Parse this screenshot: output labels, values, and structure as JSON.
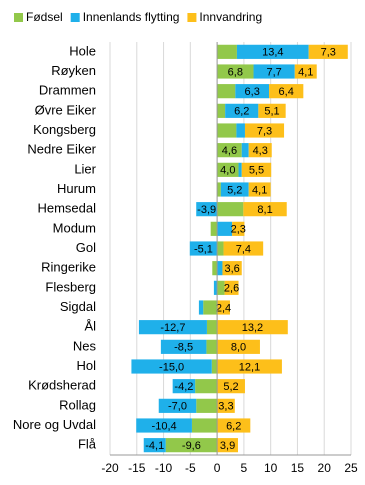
{
  "chart_data": {
    "type": "bar",
    "orientation": "horizontal",
    "stacked": true,
    "categories": [
      "Hole",
      "Røyken",
      "Drammen",
      "Øvre Eiker",
      "Kongsberg",
      "Nedre Eiker",
      "Lier",
      "Hurum",
      "Hemsedal",
      "Modum",
      "Gol",
      "Ringerike",
      "Flesberg",
      "Sigdal",
      "Ål",
      "Nes",
      "Hol",
      "Krødsherad",
      "Rollag",
      "Nore og Uvdal",
      "Flå"
    ],
    "series": [
      {
        "name": "Fødsel",
        "color": "#92c84a",
        "values": [
          3.7,
          6.8,
          3.4,
          1.5,
          3.6,
          4.6,
          4.0,
          0.7,
          4.9,
          -1.2,
          1.2,
          -0.9,
          1.4,
          -2.6,
          -1.9,
          -2.0,
          -1.0,
          -4.1,
          -3.9,
          -4.7,
          -9.6
        ],
        "value_labels": [
          null,
          "6,8",
          null,
          null,
          null,
          "4,6",
          "4,0",
          null,
          null,
          null,
          null,
          null,
          null,
          null,
          null,
          null,
          null,
          null,
          null,
          null,
          "-9,6"
        ]
      },
      {
        "name": "Innenlands flytting",
        "color": "#1fb0ea",
        "values": [
          13.4,
          7.7,
          6.3,
          6.2,
          1.6,
          1.3,
          0.6,
          5.2,
          -3.9,
          2.8,
          -5.1,
          1.0,
          -0.6,
          -0.8,
          -12.7,
          -8.5,
          -15.0,
          -4.2,
          -7.0,
          -10.4,
          -4.1
        ],
        "value_labels": [
          "13,4",
          "7,7",
          "6,3",
          "6,2",
          null,
          null,
          null,
          "5,2",
          "-3,9",
          null,
          "-5,1",
          null,
          null,
          null,
          "-12,7",
          "-8,5",
          "-15,0",
          "-4,2",
          "-7,0",
          "-10,4",
          "-4,1"
        ]
      },
      {
        "name": "Innvandring",
        "color": "#fdbf1a",
        "values": [
          7.3,
          4.1,
          6.4,
          5.1,
          7.3,
          4.3,
          5.5,
          4.1,
          8.1,
          2.3,
          7.4,
          3.6,
          2.6,
          2.4,
          13.2,
          8.0,
          12.1,
          5.2,
          3.3,
          6.2,
          3.9
        ],
        "value_labels": [
          "7,3",
          "4,1",
          "6,4",
          "5,1",
          "7,3",
          "4,3",
          "5,5",
          "4,1",
          "8,1",
          "2,3",
          "7,4",
          "3,6",
          "2,6",
          "2,4",
          "13,2",
          "8,0",
          "12,1",
          "5,2",
          "3,3",
          "6,2",
          "3,9"
        ]
      }
    ],
    "xlim": [
      -20,
      25
    ],
    "xticks": [
      -20,
      -15,
      -10,
      -5,
      0,
      5,
      10,
      15,
      20,
      25
    ],
    "grid": true,
    "legend": "top"
  }
}
